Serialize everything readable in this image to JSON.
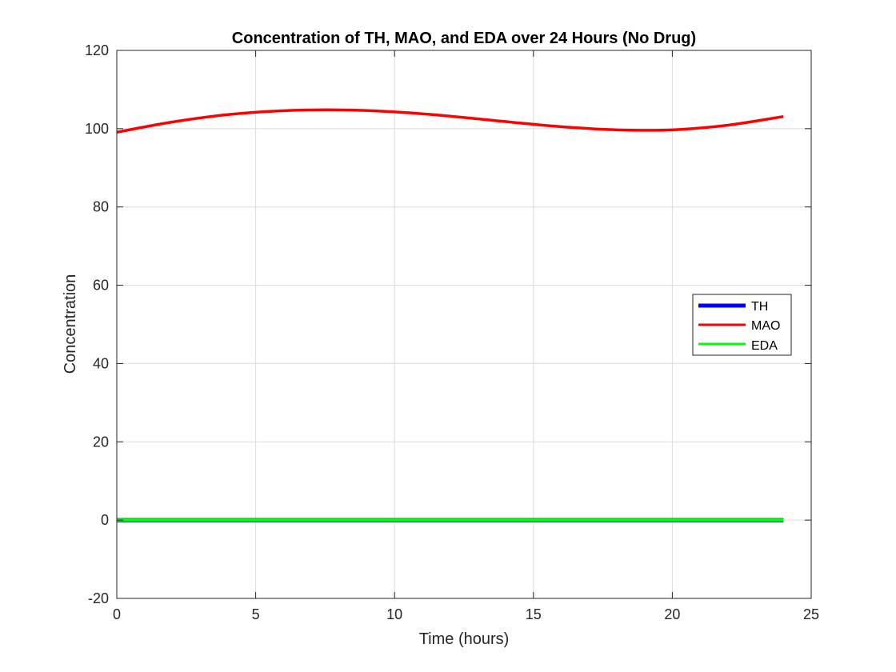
{
  "chart_data": {
    "type": "line",
    "title": "Concentration of TH, MAO, and EDA over 24 Hours (No Drug)",
    "xlabel": "Time (hours)",
    "ylabel": "Concentration",
    "xlim": [
      0,
      25
    ],
    "ylim": [
      -20,
      120
    ],
    "xticks": [
      0,
      5,
      10,
      15,
      20,
      25
    ],
    "yticks": [
      -20,
      0,
      20,
      40,
      60,
      80,
      100,
      120
    ],
    "xtick_labels": [
      "0",
      "5",
      "10",
      "15",
      "20",
      "25"
    ],
    "ytick_labels": [
      "-20",
      "0",
      "20",
      "40",
      "60",
      "80",
      "100",
      "120"
    ],
    "grid": true,
    "legend_position": "right",
    "series": [
      {
        "name": "TH",
        "color": "#0000ff",
        "x": [
          0,
          2,
          4,
          6,
          8,
          10,
          12,
          14,
          16,
          18,
          20,
          22,
          24
        ],
        "y": [
          0,
          0,
          0,
          0,
          0,
          0,
          0,
          0,
          0,
          0,
          0,
          0,
          0
        ]
      },
      {
        "name": "MAO",
        "color": "#ff0000",
        "x": [
          0,
          2,
          4,
          6,
          8,
          10,
          12,
          14,
          16,
          18,
          20,
          22,
          24
        ],
        "y": [
          99.1,
          101.7,
          103.6,
          104.6,
          104.8,
          104.3,
          103.2,
          101.8,
          100.5,
          99.7,
          99.7,
          100.9,
          103.1
        ]
      },
      {
        "name": "EDA",
        "color": "#00ff00",
        "x": [
          0,
          2,
          4,
          6,
          8,
          10,
          12,
          14,
          16,
          18,
          20,
          22,
          24
        ],
        "y": [
          0,
          0,
          0,
          0,
          0,
          0,
          0,
          0,
          0,
          0,
          0,
          0,
          0
        ]
      }
    ]
  }
}
